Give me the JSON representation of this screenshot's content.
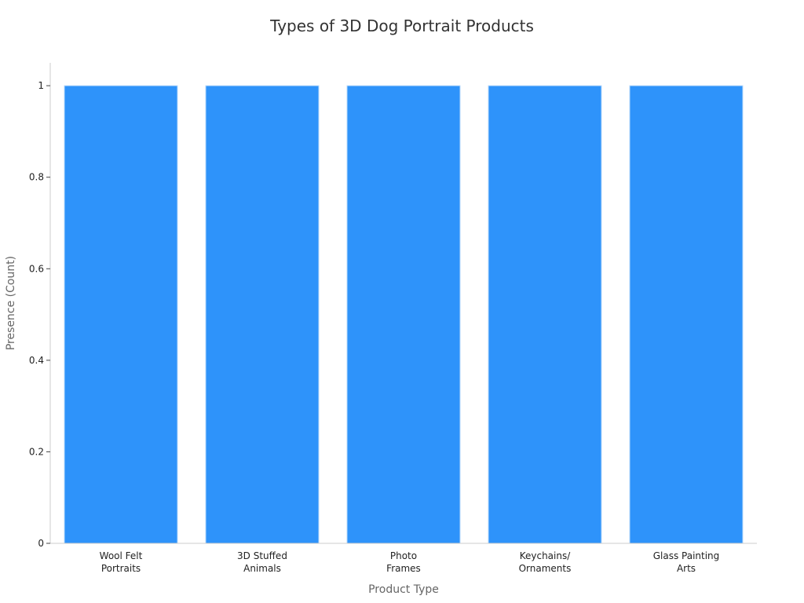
{
  "chart_data": {
    "type": "bar",
    "title": "Types of 3D Dog Portrait Products",
    "xlabel": "Product Type",
    "ylabel": "Presence (Count)",
    "categories": [
      [
        "Wool Felt",
        "Portraits"
      ],
      [
        "3D Stuffed",
        "Animals"
      ],
      [
        "Photo",
        "Frames"
      ],
      [
        "Keychains/",
        "Ornaments"
      ],
      [
        "Glass Painting",
        "Arts"
      ]
    ],
    "values": [
      1,
      1,
      1,
      1,
      1
    ],
    "ylim": [
      0,
      1.05
    ],
    "yticks": [
      "0",
      "0.2",
      "0.4",
      "0.6",
      "0.8",
      "1"
    ],
    "bar_color": "#2e93fa",
    "grid": false,
    "legend": "none"
  }
}
